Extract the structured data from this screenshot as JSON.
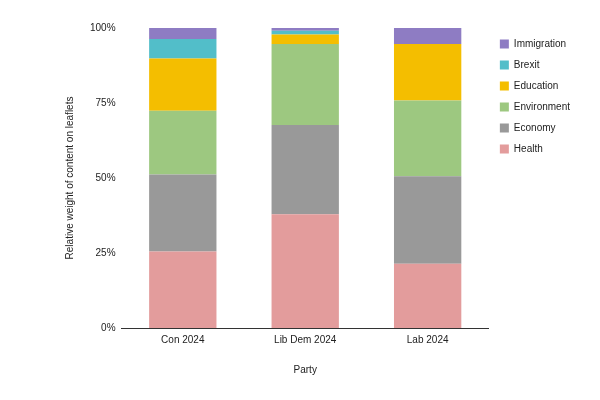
{
  "chart_data": {
    "type": "bar",
    "categories": [
      "Con 2024",
      "Lib Dem 2024",
      "Lab 2024"
    ],
    "series": [
      {
        "name": "Health",
        "color": "#e39c9c",
        "values": [
          25.5,
          37.9,
          21.4
        ]
      },
      {
        "name": "Economy",
        "color": "#999999",
        "values": [
          25.7,
          29.8,
          29.2
        ]
      },
      {
        "name": "Environment",
        "color": "#9dc880",
        "values": [
          21.2,
          27.0,
          25.2
        ]
      },
      {
        "name": "Education",
        "color": "#f4be00",
        "values": [
          17.4,
          3.1,
          18.9
        ]
      },
      {
        "name": "Brexit",
        "color": "#52bec9",
        "values": [
          6.5,
          1.3,
          0
        ]
      },
      {
        "name": "Immigration",
        "color": "#8e7cc3",
        "values": [
          3.7,
          0.9,
          5.3
        ]
      }
    ],
    "x_label": "Party",
    "y_label": "Relative weight of content on leaflets",
    "ylim": [
      0,
      100
    ],
    "yticks": [
      {
        "value": 0,
        "label": "0%"
      },
      {
        "value": 25,
        "label": "25%"
      },
      {
        "value": 50,
        "label": "50%"
      },
      {
        "value": 75,
        "label": "75%"
      },
      {
        "value": 100,
        "label": "100%"
      }
    ],
    "stacked": true,
    "grid": false,
    "legend": "right"
  }
}
